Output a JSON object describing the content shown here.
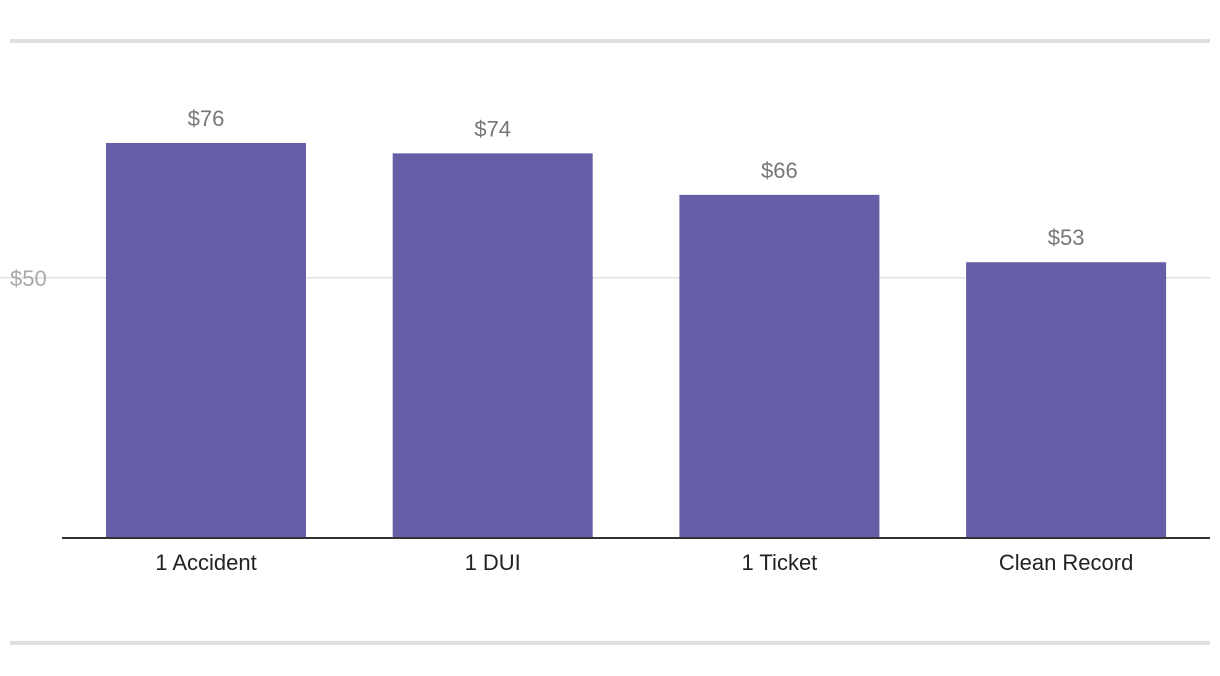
{
  "chart_data": {
    "type": "bar",
    "title": "",
    "xlabel": "",
    "ylabel": "",
    "categories": [
      "1 Accident",
      "1 DUI",
      "1 Ticket",
      "Clean Record"
    ],
    "values": [
      76,
      74,
      66,
      53
    ],
    "value_labels": [
      "$76",
      "$74",
      "$66",
      "$53"
    ],
    "y_ticks": [
      {
        "value": 50,
        "label": "$50"
      }
    ],
    "ylim": [
      0,
      76
    ],
    "grid": true,
    "legend": "none",
    "colors": {
      "bar": "#645fa6"
    }
  }
}
